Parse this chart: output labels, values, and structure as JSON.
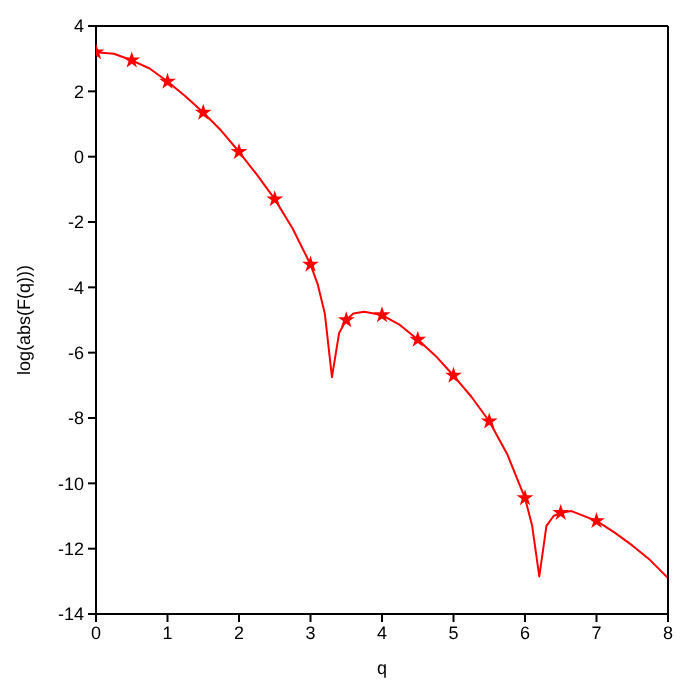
{
  "chart_data": {
    "type": "line",
    "xlabel": "q",
    "ylabel": "log(abs(F(q)))",
    "xlim": [
      0,
      8
    ],
    "xticks": [
      0,
      1,
      2,
      3,
      4,
      5,
      6,
      7,
      8
    ],
    "ylim": [
      -14,
      4
    ],
    "yticks": [
      -14,
      -12,
      -10,
      -8,
      -6,
      -4,
      -2,
      0,
      2,
      4
    ],
    "series": [
      {
        "color": "#ff0000",
        "x": [
          0,
          0.25,
          0.5,
          0.75,
          1,
          1.25,
          1.5,
          1.75,
          2,
          2.25,
          2.5,
          2.75,
          3,
          3.1,
          3.2,
          3.3,
          3.4,
          3.5,
          3.6,
          3.75,
          4,
          4.25,
          4.5,
          4.75,
          5,
          5.25,
          5.5,
          5.75,
          6,
          6.1,
          6.2,
          6.3,
          6.4,
          6.5,
          6.65,
          7,
          7.25,
          7.5,
          7.75,
          8
        ],
        "values": [
          3.2,
          3.15,
          2.95,
          2.7,
          2.3,
          1.85,
          1.35,
          0.8,
          0.15,
          -0.55,
          -1.3,
          -2.2,
          -3.3,
          -3.9,
          -4.8,
          -6.75,
          -5.4,
          -5.0,
          -4.8,
          -4.75,
          -4.85,
          -5.15,
          -5.6,
          -6.1,
          -6.7,
          -7.35,
          -8.1,
          -9.1,
          -10.45,
          -11.3,
          -12.85,
          -11.3,
          -11.0,
          -10.9,
          -10.85,
          -11.15,
          -11.5,
          -11.9,
          -12.35,
          -12.9
        ]
      },
      {
        "type": "scatter",
        "color": "#ff0000",
        "marker": "star",
        "x": [
          0,
          0.5,
          1,
          1.5,
          2,
          2.5,
          3,
          3.5,
          4,
          4.5,
          5,
          5.5,
          6,
          6.5,
          7
        ],
        "values": [
          3.2,
          2.95,
          2.3,
          1.35,
          0.15,
          -1.3,
          -3.3,
          -5.0,
          -4.85,
          -5.6,
          -6.7,
          -8.1,
          -10.45,
          -10.9,
          -11.15
        ]
      }
    ]
  }
}
